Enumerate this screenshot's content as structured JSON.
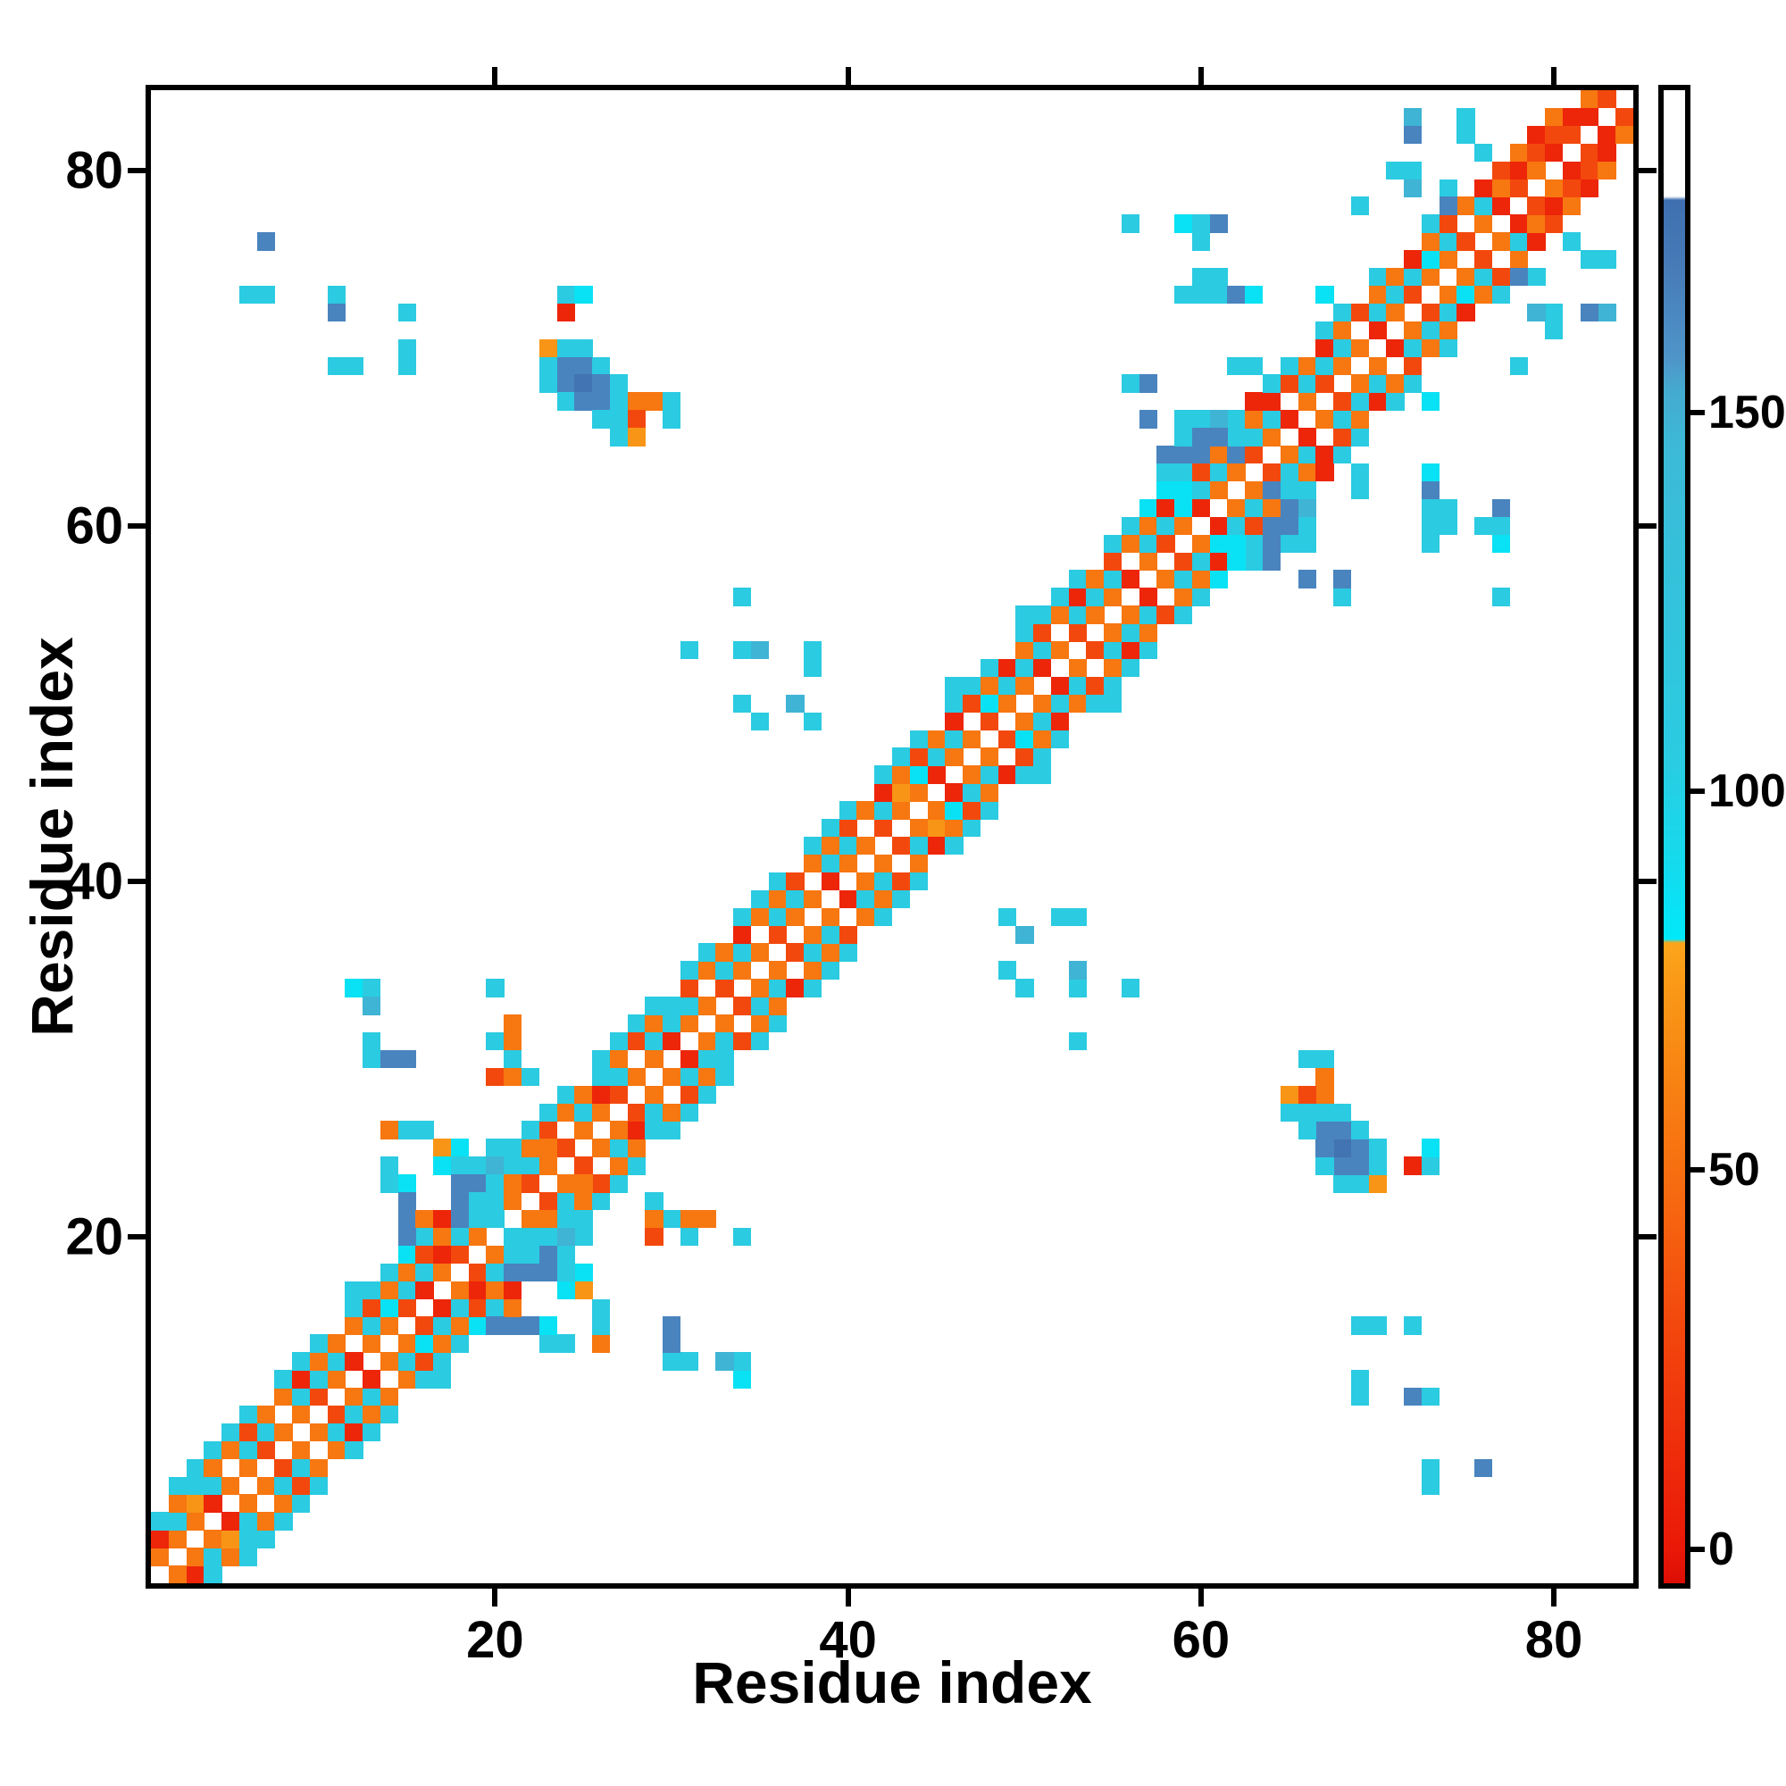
{
  "axes": {
    "x": {
      "label": "Residue index",
      "ticks": [
        20,
        40,
        60,
        80
      ]
    },
    "y": {
      "label": "Residue index",
      "ticks": [
        20,
        40,
        60,
        80
      ]
    }
  },
  "colorbar": {
    "tick_values": [
      0,
      50,
      100,
      150
    ],
    "tick_labels": [
      "0",
      "50",
      "100",
      "150"
    ],
    "vmin": -4.5,
    "vmax": 192.5
  },
  "colors": {
    "red": "#EA1807",
    "orange_red": "#F3480D",
    "orange": "#F77711",
    "amber": "#FA9A17",
    "bright_cyan": "#00E9FA",
    "cyan": "#2BCBE1",
    "steel_blue": "#4E95C8",
    "white_high": "#FFFFFF",
    "frame": "#000000"
  },
  "chart_data": {
    "type": "heatmap",
    "title": "",
    "xlabel": "Residue index",
    "ylabel": "Residue index",
    "n_residues": 84,
    "x_range": [
      1,
      84
    ],
    "y_range": [
      1,
      84
    ],
    "symmetric": true,
    "grid": false,
    "legend_position": "right-colorbar",
    "value_meaning": "contact order / sequence distance color index; white = no contact",
    "colormap_stops": [
      [
        -5.0,
        "#DC0E04"
      ],
      [
        0,
        "#EA1807"
      ],
      [
        15,
        "#EF300B"
      ],
      [
        30,
        "#F3480D"
      ],
      [
        45,
        "#F6660F"
      ],
      [
        55,
        "#F77711"
      ],
      [
        65,
        "#F88813"
      ],
      [
        75,
        "#FA9A17"
      ],
      [
        80,
        "#FBA51B"
      ],
      [
        80.5,
        "#00E9FA"
      ],
      [
        90,
        "#14DBEE"
      ],
      [
        105,
        "#2BCBE1"
      ],
      [
        125,
        "#33C3DC"
      ],
      [
        145,
        "#3CBAD7"
      ],
      [
        153,
        "#45AACF"
      ],
      [
        157,
        "#4E95C8"
      ],
      [
        170,
        "#4679B7"
      ],
      [
        178,
        "#3F6FB0"
      ],
      [
        178.5,
        "#FFFFFF"
      ],
      [
        192.5,
        "#FFFFFF"
      ]
    ],
    "band_start_i": 1,
    "band_offsets": [
      1,
      2,
      3,
      4,
      5
    ],
    "band_rows": [
      [
        55,
        8,
        105,
        null,
        null
      ],
      [
        55,
        105,
        55,
        105,
        null
      ],
      [
        55,
        72,
        105,
        105,
        null
      ],
      [
        8,
        105,
        55,
        105,
        null
      ],
      [
        55,
        null,
        55,
        105,
        null
      ],
      [
        55,
        105,
        30,
        105,
        null
      ],
      [
        30,
        105,
        55,
        null,
        null
      ],
      [
        55,
        null,
        55,
        105,
        null
      ],
      [
        55,
        105,
        8,
        105,
        null
      ],
      [
        30,
        105,
        55,
        105,
        null
      ],
      [
        55,
        105,
        55,
        null,
        null
      ],
      [
        8,
        null,
        55,
        105,
        105
      ],
      [
        55,
        105,
        30,
        105,
        null
      ],
      [
        55,
        85,
        55,
        105,
        null
      ],
      [
        30,
        105,
        55,
        85,
        null
      ],
      [
        8,
        105,
        30,
        105,
        105
      ],
      [
        55,
        8,
        55,
        105,
        null
      ],
      [
        30,
        105,
        165,
        105,
        null
      ],
      [
        55,
        105,
        30,
        null,
        105
      ],
      [
        8,
        55,
        105,
        30,
        105
      ],
      [
        55,
        30,
        55,
        105,
        null
      ],
      [
        8,
        105,
        55,
        105,
        null
      ],
      [
        55,
        105,
        30,
        105,
        null
      ],
      [
        30,
        null,
        55,
        105,
        null
      ],
      [
        55,
        105,
        55,
        null,
        null
      ],
      [
        55,
        8,
        105,
        105,
        null
      ],
      [
        30,
        105,
        55,
        105,
        null
      ],
      [
        55,
        null,
        30,
        105,
        null
      ],
      [
        55,
        105,
        55,
        105,
        null
      ],
      [
        8,
        105,
        105,
        null,
        null
      ],
      [
        55,
        105,
        30,
        105,
        null
      ],
      [
        55,
        null,
        55,
        105,
        null
      ],
      [
        30,
        105,
        55,
        null,
        null
      ],
      [
        55,
        105,
        8,
        105,
        null
      ],
      [
        55,
        null,
        55,
        105,
        null
      ],
      [
        30,
        105,
        55,
        105,
        null
      ],
      [
        55,
        105,
        30,
        null,
        null
      ],
      [
        55,
        null,
        55,
        105,
        null
      ],
      [
        8,
        105,
        55,
        105,
        null
      ],
      [
        55,
        105,
        30,
        105,
        null
      ],
      [
        55,
        null,
        55,
        null,
        null
      ],
      [
        30,
        105,
        8,
        105,
        null
      ],
      [
        55,
        72,
        55,
        105,
        null
      ],
      [
        55,
        85,
        30,
        105,
        null
      ],
      [
        8,
        105,
        55,
        null,
        null
      ],
      [
        55,
        105,
        8,
        105,
        105
      ],
      [
        55,
        null,
        30,
        105,
        null
      ],
      [
        30,
        85,
        55,
        105,
        null
      ],
      [
        55,
        105,
        8,
        null,
        null
      ],
      [
        55,
        105,
        55,
        105,
        105
      ],
      [
        8,
        105,
        30,
        105,
        null
      ],
      [
        55,
        null,
        55,
        105,
        null
      ],
      [
        30,
        105,
        8,
        105,
        null
      ],
      [
        55,
        105,
        55,
        null,
        null
      ],
      [
        55,
        105,
        30,
        105,
        null
      ],
      [
        8,
        null,
        55,
        105,
        null
      ],
      [
        55,
        105,
        55,
        85,
        null
      ],
      [
        30,
        105,
        8,
        105,
        105
      ],
      [
        55,
        85,
        55,
        105,
        165
      ],
      [
        8,
        105,
        30,
        165,
        105
      ],
      [
        55,
        105,
        55,
        105,
        null
      ],
      [
        55,
        165,
        105,
        105,
        null
      ],
      [
        30,
        105,
        55,
        8,
        null
      ],
      [
        55,
        105,
        8,
        105,
        null
      ],
      [
        8,
        null,
        30,
        105,
        null
      ],
      [
        55,
        105,
        55,
        null,
        null
      ],
      [
        30,
        105,
        8,
        105,
        null
      ],
      [
        55,
        105,
        55,
        105,
        null
      ],
      [
        55,
        null,
        30,
        null,
        null
      ],
      [
        8,
        105,
        55,
        105,
        null
      ],
      [
        55,
        105,
        55,
        null,
        null
      ],
      [
        30,
        105,
        8,
        null,
        null
      ],
      [
        55,
        85,
        55,
        105,
        null
      ],
      [
        55,
        105,
        30,
        null,
        null
      ],
      [
        30,
        null,
        55,
        null,
        null
      ],
      [
        55,
        105,
        8,
        null,
        null
      ],
      [
        8,
        55,
        30,
        null,
        null
      ],
      [
        30,
        8,
        55,
        null,
        null
      ],
      [
        55,
        30,
        8,
        null,
        null
      ],
      [
        8,
        30,
        55,
        null,
        null
      ],
      [
        30,
        8,
        null,
        null,
        null
      ],
      [
        8,
        55,
        null,
        null,
        null
      ],
      [
        30,
        null,
        null,
        null,
        null
      ]
    ],
    "extra_cells": [
      [
        7,
        76,
        165
      ],
      [
        6,
        73,
        105
      ],
      [
        7,
        73,
        105
      ],
      [
        11,
        73,
        105
      ],
      [
        11,
        72,
        165
      ],
      [
        11,
        69,
        105
      ],
      [
        12,
        69,
        105
      ],
      [
        15,
        72,
        105
      ],
      [
        15,
        70,
        105
      ],
      [
        15,
        69,
        105
      ],
      [
        12,
        34,
        85
      ],
      [
        13,
        34,
        105
      ],
      [
        13,
        33,
        148
      ],
      [
        13,
        31,
        105
      ],
      [
        13,
        30,
        105
      ],
      [
        14,
        30,
        165
      ],
      [
        15,
        30,
        165
      ],
      [
        20,
        34,
        105
      ],
      [
        21,
        32,
        55
      ],
      [
        20,
        31,
        105
      ],
      [
        21,
        31,
        55
      ],
      [
        21,
        30,
        105
      ],
      [
        20,
        29,
        30
      ],
      [
        21,
        29,
        55
      ],
      [
        22,
        29,
        105
      ],
      [
        14,
        26,
        55
      ],
      [
        15,
        26,
        105
      ],
      [
        16,
        26,
        105
      ],
      [
        17,
        25,
        72
      ],
      [
        18,
        25,
        85
      ],
      [
        23,
        25,
        55
      ],
      [
        17,
        24,
        85
      ],
      [
        18,
        24,
        105
      ],
      [
        20,
        24,
        148
      ],
      [
        21,
        24,
        105
      ],
      [
        14,
        24,
        105
      ],
      [
        14,
        23,
        105
      ],
      [
        15,
        23,
        85
      ],
      [
        18,
        23,
        165
      ],
      [
        19,
        23,
        165
      ],
      [
        20,
        23,
        105
      ],
      [
        21,
        23,
        55
      ],
      [
        22,
        23,
        30
      ],
      [
        15,
        22,
        165
      ],
      [
        18,
        22,
        165
      ],
      [
        19,
        22,
        105
      ],
      [
        20,
        22,
        105
      ],
      [
        21,
        22,
        55
      ],
      [
        15,
        21,
        165
      ],
      [
        16,
        21,
        55
      ],
      [
        17,
        21,
        8
      ],
      [
        19,
        21,
        105
      ],
      [
        20,
        21,
        105
      ],
      [
        15,
        20,
        165
      ],
      [
        24,
        73,
        105
      ],
      [
        25,
        73,
        85
      ],
      [
        24,
        72,
        8
      ],
      [
        23,
        70,
        72
      ],
      [
        24,
        70,
        105
      ],
      [
        25,
        70,
        105
      ],
      [
        23,
        69,
        105
      ],
      [
        24,
        69,
        165
      ],
      [
        25,
        69,
        165
      ],
      [
        26,
        69,
        105
      ],
      [
        23,
        68,
        105
      ],
      [
        24,
        68,
        165
      ],
      [
        25,
        68,
        175
      ],
      [
        26,
        68,
        165
      ],
      [
        27,
        68,
        105
      ],
      [
        24,
        67,
        105
      ],
      [
        25,
        67,
        165
      ],
      [
        26,
        67,
        165
      ],
      [
        27,
        67,
        105
      ],
      [
        28,
        67,
        55
      ],
      [
        29,
        67,
        55
      ],
      [
        30,
        67,
        105
      ],
      [
        26,
        66,
        105
      ],
      [
        27,
        66,
        105
      ],
      [
        28,
        66,
        30
      ],
      [
        30,
        66,
        105
      ],
      [
        27,
        65,
        105
      ],
      [
        28,
        65,
        72
      ],
      [
        34,
        56,
        105
      ],
      [
        31,
        53,
        105
      ],
      [
        34,
        53,
        105
      ],
      [
        35,
        53,
        148
      ],
      [
        38,
        53,
        105
      ],
      [
        38,
        52,
        105
      ],
      [
        35,
        49,
        105
      ],
      [
        38,
        49,
        105
      ],
      [
        34,
        50,
        105
      ],
      [
        37,
        50,
        148
      ],
      [
        56,
        68,
        105
      ],
      [
        57,
        68,
        165
      ],
      [
        57,
        66,
        165
      ],
      [
        58,
        64,
        165
      ],
      [
        62,
        69,
        105
      ],
      [
        63,
        69,
        105
      ],
      [
        59,
        66,
        105
      ],
      [
        60,
        66,
        105
      ],
      [
        61,
        66,
        148
      ],
      [
        59,
        65,
        105
      ],
      [
        60,
        65,
        165
      ],
      [
        61,
        65,
        165
      ],
      [
        58,
        62,
        85
      ],
      [
        59,
        62,
        85
      ],
      [
        67,
        73,
        85
      ],
      [
        59,
        73,
        105
      ],
      [
        60,
        73,
        105
      ],
      [
        61,
        73,
        105
      ],
      [
        62,
        73,
        165
      ],
      [
        63,
        73,
        85
      ],
      [
        60,
        74,
        105
      ],
      [
        61,
        74,
        105
      ],
      [
        56,
        77,
        105
      ],
      [
        59,
        77,
        85
      ],
      [
        60,
        77,
        105
      ],
      [
        60,
        76,
        105
      ],
      [
        61,
        77,
        165
      ],
      [
        72,
        83,
        148
      ],
      [
        72,
        82,
        165
      ],
      [
        75,
        83,
        105
      ],
      [
        75,
        82,
        105
      ],
      [
        71,
        80,
        105
      ],
      [
        72,
        80,
        105
      ],
      [
        72,
        79,
        148
      ],
      [
        74,
        79,
        105
      ],
      [
        74,
        78,
        165
      ],
      [
        76,
        81,
        105
      ],
      [
        69,
        78,
        105
      ]
    ]
  }
}
